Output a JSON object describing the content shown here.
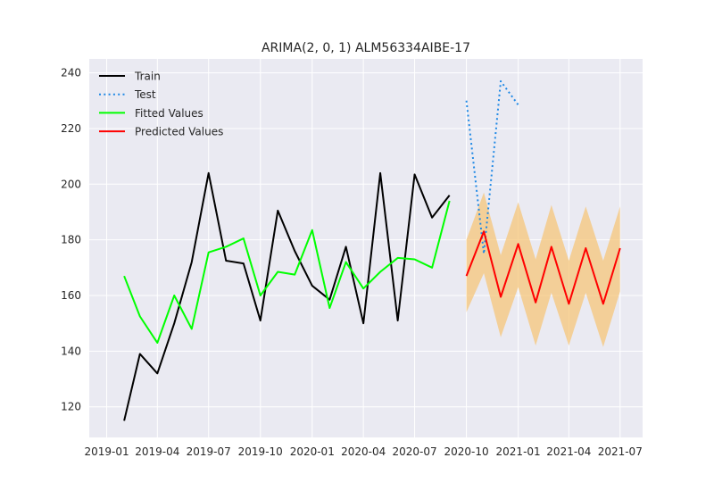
{
  "chart_data": {
    "type": "line",
    "title": "ARIMA(2, 0, 1) ALM56334AIBE-17",
    "xlabel": "",
    "ylabel": "",
    "x_axis_type": "date",
    "xlim": [
      "2018-12-01",
      "2021-08-10"
    ],
    "ylim": [
      109,
      245
    ],
    "x_ticks": [
      "2019-01-01",
      "2019-04-01",
      "2019-07-01",
      "2019-10-01",
      "2020-01-01",
      "2020-04-01",
      "2020-07-01",
      "2020-10-01",
      "2021-01-01",
      "2021-04-01",
      "2021-07-01"
    ],
    "x_tick_labels": [
      "2019-01",
      "2019-04",
      "2019-07",
      "2019-10",
      "2020-01",
      "2020-04",
      "2020-07",
      "2020-10",
      "2021-01",
      "2021-04",
      "2021-07"
    ],
    "y_ticks": [
      120,
      140,
      160,
      180,
      200,
      220,
      240
    ],
    "y_tick_labels": [
      "120",
      "140",
      "160",
      "180",
      "200",
      "220",
      "240"
    ],
    "grid": true,
    "legend_position": "top-left",
    "series": [
      {
        "name": "Train",
        "color": "#000000",
        "style": "solid",
        "x": [
          "2019-02-01",
          "2019-03-01",
          "2019-04-01",
          "2019-05-01",
          "2019-06-01",
          "2019-07-01",
          "2019-08-01",
          "2019-09-01",
          "2019-10-01",
          "2019-11-01",
          "2019-12-01",
          "2020-01-01",
          "2020-02-01",
          "2020-03-01",
          "2020-04-01",
          "2020-05-01",
          "2020-06-01",
          "2020-07-01",
          "2020-08-01",
          "2020-09-01"
        ],
        "y": [
          115,
          139,
          132,
          150,
          172,
          204,
          172.5,
          171.5,
          151,
          190.5,
          176,
          163.5,
          158.5,
          177.5,
          150,
          204,
          151,
          203.5,
          188,
          196
        ]
      },
      {
        "name": "Test",
        "color": "#1e88e5",
        "style": "dotted",
        "x": [
          "2020-10-01",
          "2020-11-01",
          "2020-12-01",
          "2021-01-01"
        ],
        "y": [
          230,
          175,
          237,
          228.5
        ]
      },
      {
        "name": "Fitted Values",
        "color": "#00ff00",
        "style": "solid",
        "x": [
          "2019-02-01",
          "2019-03-01",
          "2019-04-01",
          "2019-05-01",
          "2019-06-01",
          "2019-07-01",
          "2019-08-01",
          "2019-09-01",
          "2019-10-01",
          "2019-11-01",
          "2019-12-01",
          "2020-01-01",
          "2020-02-01",
          "2020-03-01",
          "2020-04-01",
          "2020-05-01",
          "2020-06-01",
          "2020-07-01",
          "2020-08-01",
          "2020-09-01"
        ],
        "y": [
          167,
          152.5,
          143,
          160,
          148,
          175.5,
          177.5,
          180.5,
          160,
          168.5,
          167.5,
          183.5,
          155.5,
          172,
          162.5,
          168.5,
          173.5,
          173,
          170,
          194
        ]
      },
      {
        "name": "Predicted Values",
        "color": "#ff0000",
        "style": "solid",
        "x": [
          "2020-10-01",
          "2020-11-01",
          "2020-12-01",
          "2021-01-01",
          "2021-02-01",
          "2021-03-01",
          "2021-04-01",
          "2021-05-01",
          "2021-06-01",
          "2021-07-01"
        ],
        "y": [
          167,
          183,
          159.5,
          178.5,
          157.5,
          177.5,
          157,
          177,
          157,
          177
        ]
      }
    ],
    "confidence_band": {
      "color": "#f5c57a",
      "x": [
        "2020-10-01",
        "2020-11-01",
        "2020-12-01",
        "2021-01-01",
        "2021-02-01",
        "2021-03-01",
        "2021-04-01",
        "2021-05-01",
        "2021-06-01",
        "2021-07-01"
      ],
      "lower": [
        154,
        168,
        145,
        163,
        142,
        161,
        142,
        161,
        141.5,
        161.5
      ],
      "upper": [
        180,
        197,
        174.5,
        193.5,
        173,
        192.5,
        172.5,
        192,
        172.5,
        192
      ]
    },
    "colors": {
      "plot_background": "#eaeaf2",
      "grid": "#ffffff",
      "text": "#262626"
    }
  }
}
